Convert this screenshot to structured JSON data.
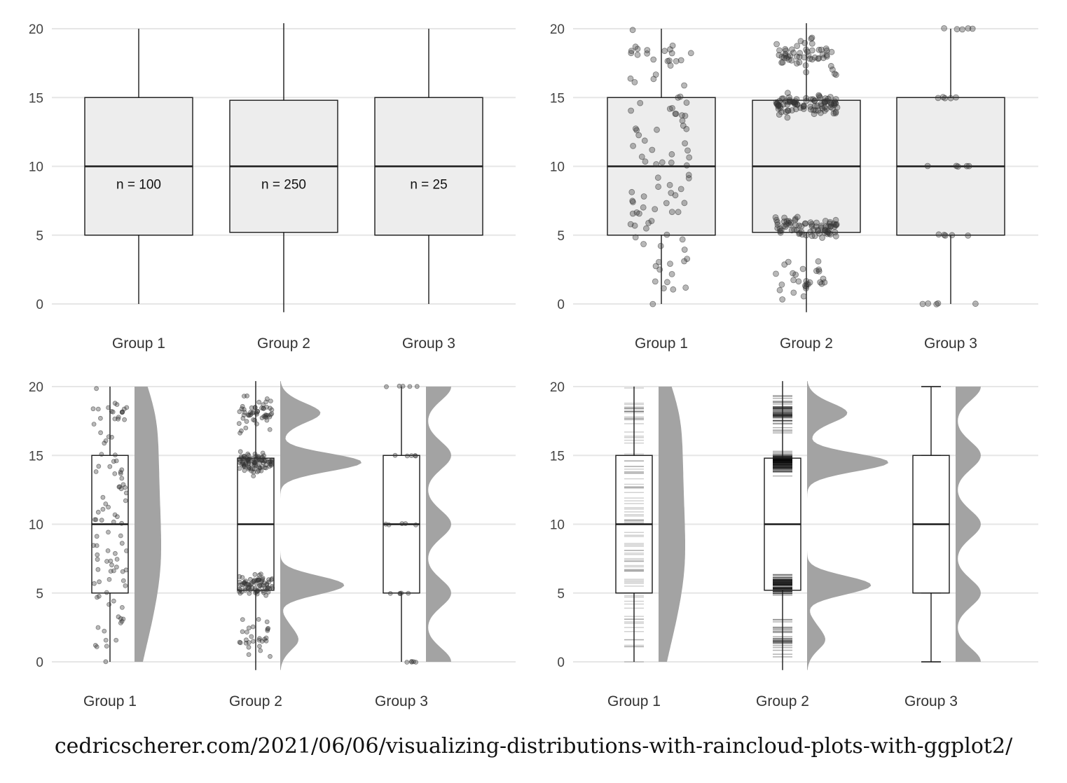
{
  "caption": "cedricscherer.com/2021/06/06/visualizing-distributions-with-raincloud-plots-with-ggplot2/",
  "style": {
    "grid_color": "#e6e6e6",
    "box_fill": "#ededed",
    "point_color": "#333333",
    "density_fill": "#a3a3a3",
    "line_color": "#1a1a1a"
  },
  "chart_data": [
    {
      "type": "box",
      "panel": "top-left",
      "categories": [
        "Group 1",
        "Group 2",
        "Group 3"
      ],
      "y_ticks": [
        0,
        5,
        10,
        15,
        20
      ],
      "ylim": [
        0,
        20
      ],
      "grid": "horizontal",
      "boxes": [
        {
          "min": 0,
          "q1": 5,
          "median": 10,
          "q3": 15,
          "max": 20
        },
        {
          "min": -0.6,
          "q1": 5.2,
          "median": 10,
          "q3": 14.8,
          "max": 20.4
        },
        {
          "min": 0,
          "q1": 5,
          "median": 10,
          "q3": 15,
          "max": 20
        }
      ],
      "annotations": [
        "n = 100",
        "n = 250",
        "n = 25"
      ]
    },
    {
      "type": "box",
      "variant": "box with jittered points",
      "panel": "top-right",
      "categories": [
        "Group 1",
        "Group 2",
        "Group 3"
      ],
      "y_ticks": [
        0,
        5,
        10,
        15,
        20
      ],
      "ylim": [
        0,
        20
      ],
      "grid": "horizontal",
      "boxes": [
        {
          "min": 0,
          "q1": 5,
          "median": 10,
          "q3": 15,
          "max": 20
        },
        {
          "min": -0.6,
          "q1": 5.2,
          "median": 10,
          "q3": 14.8,
          "max": 20.4
        },
        {
          "min": 0,
          "q1": 5,
          "median": 10,
          "q3": 15,
          "max": 20
        }
      ],
      "point_counts": [
        100,
        250,
        25
      ]
    },
    {
      "type": "raincloud",
      "variant": "jittered points + box + half density",
      "panel": "bottom-left",
      "categories": [
        "Group 1",
        "Group 2",
        "Group 3"
      ],
      "y_ticks": [
        0,
        5,
        10,
        15,
        20
      ],
      "ylim": [
        0,
        20
      ],
      "grid": "horizontal",
      "boxes": [
        {
          "min": 0,
          "q1": 5,
          "median": 10,
          "q3": 15,
          "max": 20
        },
        {
          "min": -0.6,
          "q1": 5.2,
          "median": 10,
          "q3": 14.8,
          "max": 20.4
        },
        {
          "min": 0,
          "q1": 5,
          "median": 10,
          "q3": 15,
          "max": 20
        }
      ],
      "point_counts": [
        100,
        250,
        25
      ]
    },
    {
      "type": "raincloud",
      "variant": "barcode strips + box + half density",
      "panel": "bottom-right",
      "categories": [
        "Group 1",
        "Group 2",
        "Group 3"
      ],
      "y_ticks": [
        0,
        5,
        10,
        15,
        20
      ],
      "ylim": [
        0,
        20
      ],
      "grid": "horizontal",
      "boxes": [
        {
          "min": 0,
          "q1": 5,
          "median": 10,
          "q3": 15,
          "max": 20
        },
        {
          "min": -0.6,
          "q1": 5.2,
          "median": 10,
          "q3": 14.8,
          "max": 20.4
        },
        {
          "min": 0,
          "q1": 5,
          "median": 10,
          "q3": 15,
          "max": 20
        }
      ],
      "point_counts": [
        100,
        250,
        25
      ]
    }
  ]
}
